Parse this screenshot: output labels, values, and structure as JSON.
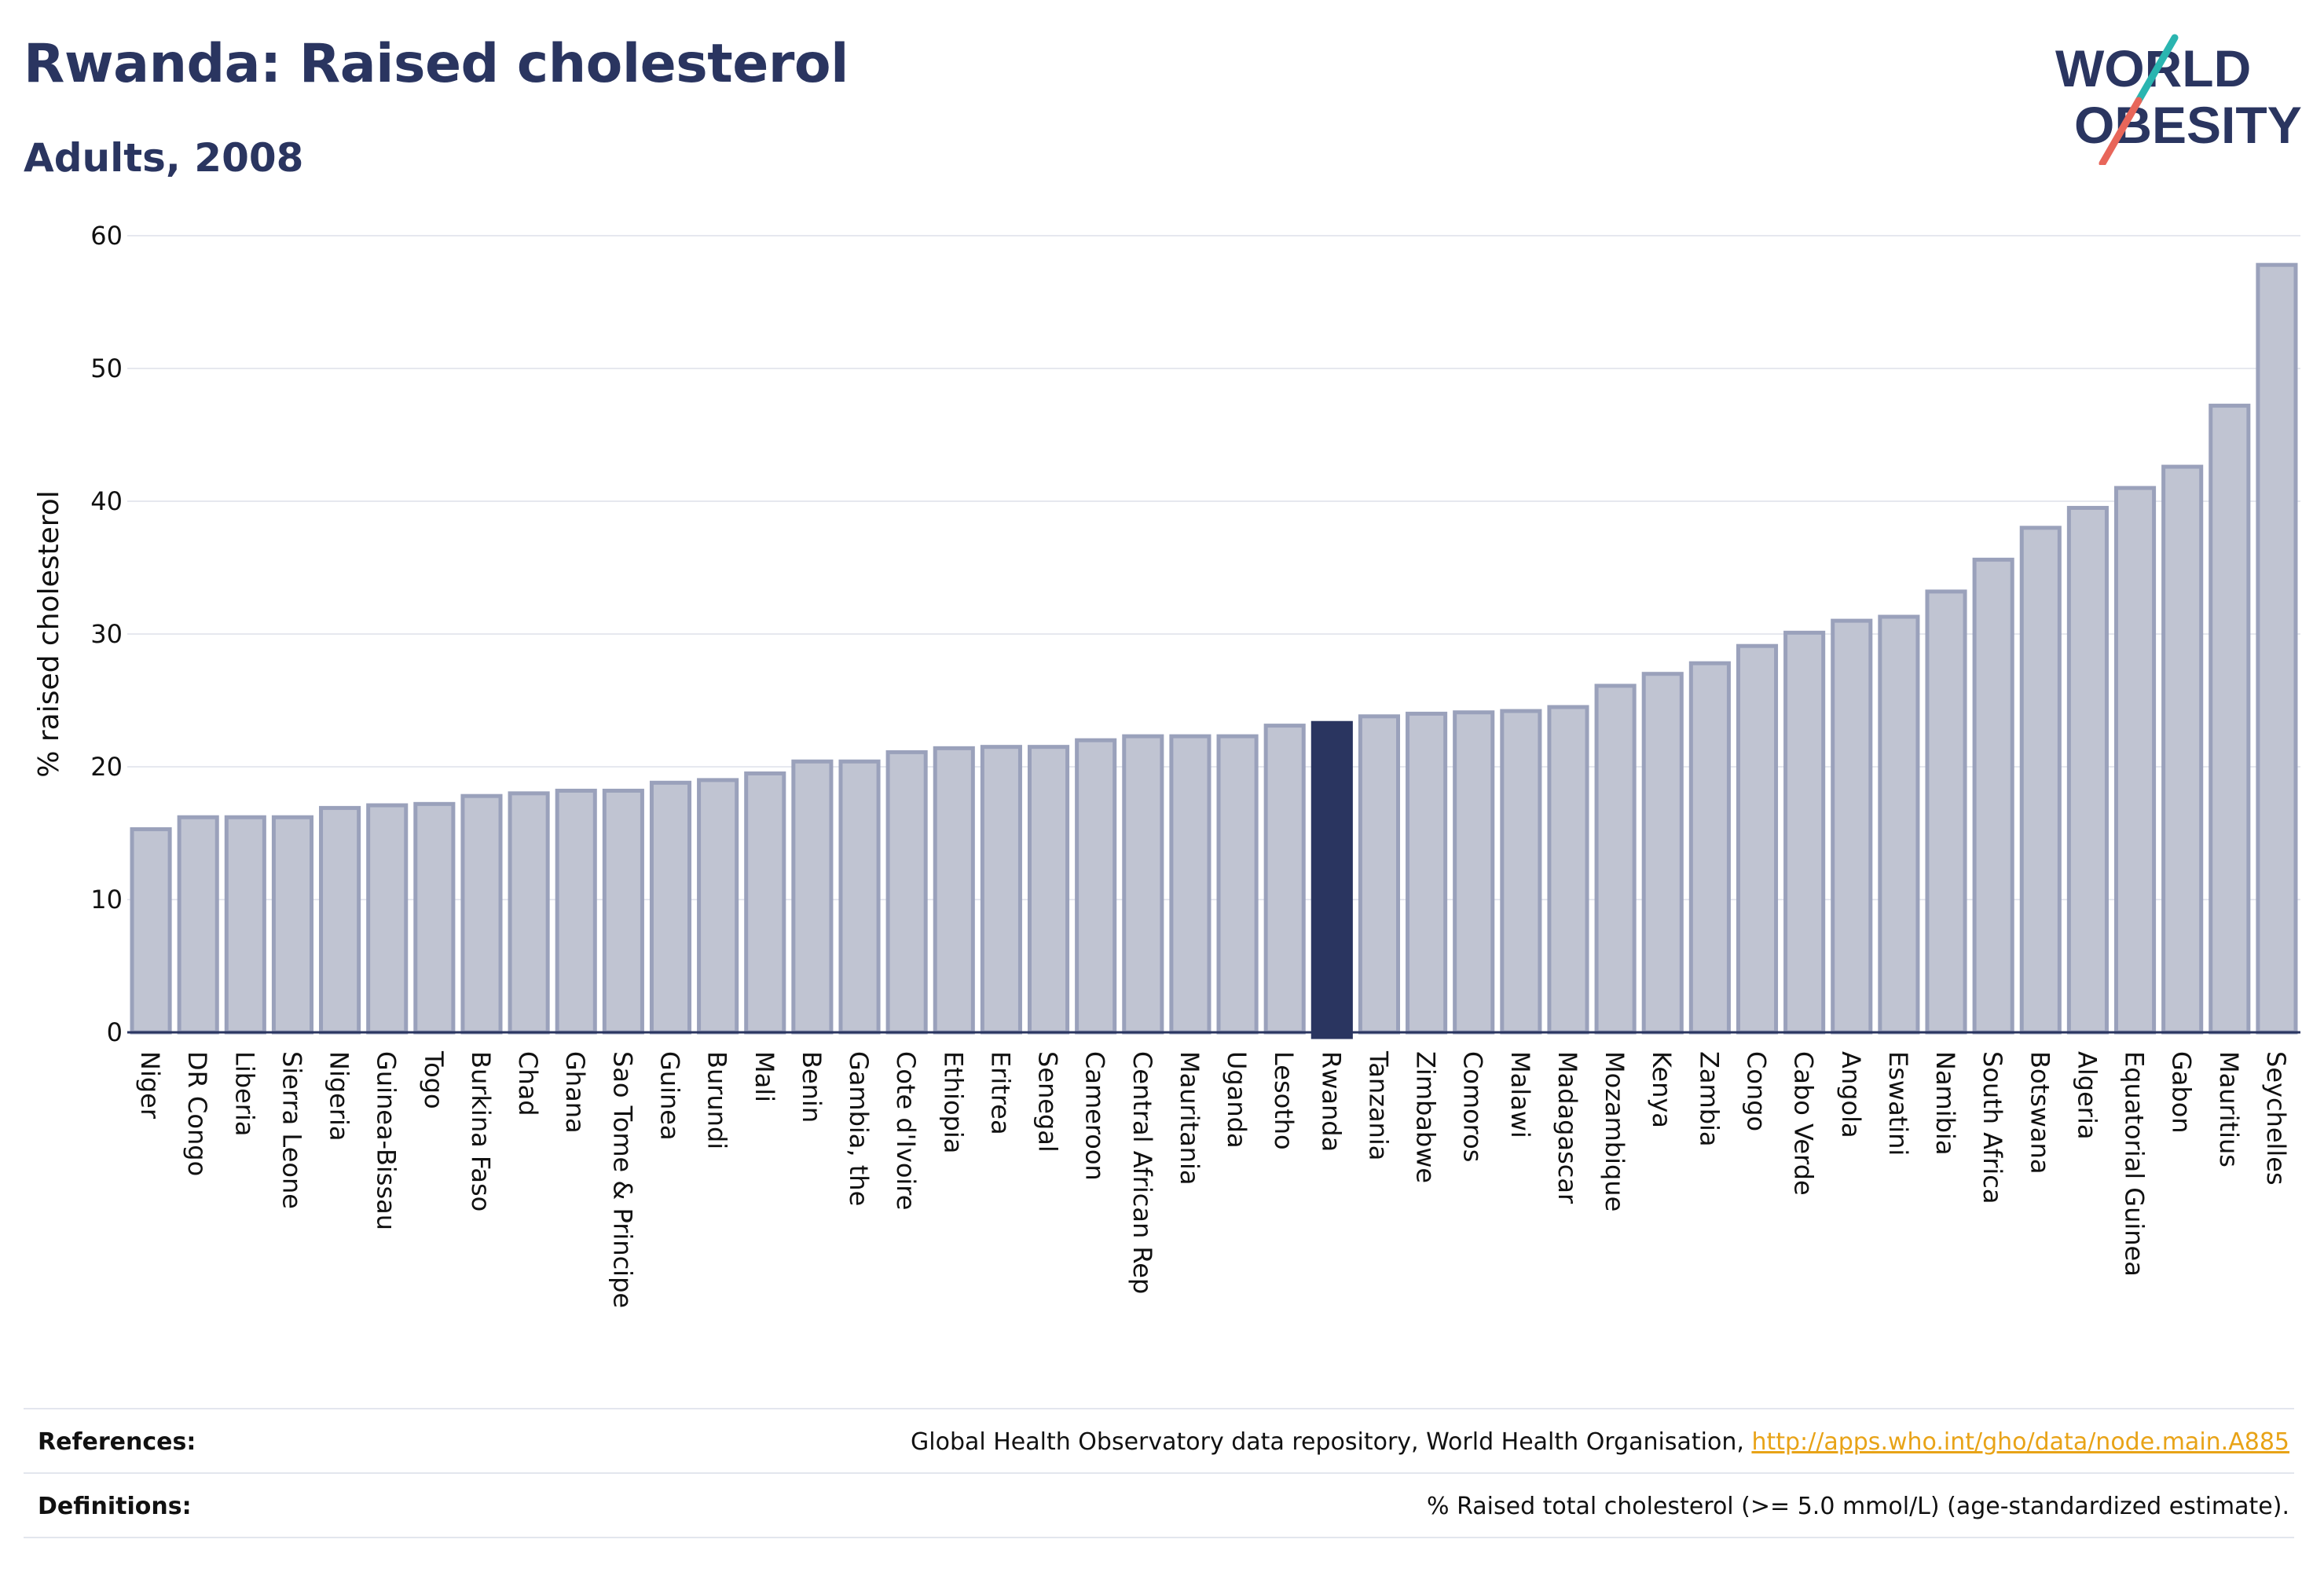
{
  "header": {
    "title": "Rwanda: Raised cholesterol",
    "subtitle": "Adults, 2008"
  },
  "logo": {
    "line1": "WORLD",
    "line2": "OBESITY",
    "colors": {
      "text": "#2a3560",
      "slash_top": "#2ab5b0",
      "slash_bottom": "#e8665a"
    }
  },
  "colors": {
    "bar_fill": "#c0c4d2",
    "bar_stroke": "#9aa1bb",
    "highlight": "#2a3560",
    "grid": "#e6e8ef",
    "axis": "#2a3560"
  },
  "chart_data": {
    "type": "bar",
    "title": "Rwanda: Raised cholesterol",
    "subtitle": "Adults, 2008",
    "xlabel": "",
    "ylabel": "% raised cholesterol",
    "ylim": [
      0,
      60
    ],
    "yticks": [
      0,
      10,
      20,
      30,
      40,
      50,
      60
    ],
    "grid": true,
    "highlight": "Rwanda",
    "categories": [
      "Niger",
      "DR Congo",
      "Liberia",
      "Sierra Leone",
      "Nigeria",
      "Guinea-Bissau",
      "Togo",
      "Burkina Faso",
      "Chad",
      "Ghana",
      "Sao Tome & Principe",
      "Guinea",
      "Burundi",
      "Mali",
      "Benin",
      "Gambia, the",
      "Cote d'Ivoire",
      "Ethiopia",
      "Eritrea",
      "Senegal",
      "Cameroon",
      "Central African Rep",
      "Mauritania",
      "Uganda",
      "Lesotho",
      "Rwanda",
      "Tanzania",
      "Zimbabwe",
      "Comoros",
      "Malawi",
      "Madagascar",
      "Mozambique",
      "Kenya",
      "Zambia",
      "Congo",
      "Cabo Verde",
      "Angola",
      "Eswatini",
      "Namibia",
      "South Africa",
      "Botswana",
      "Algeria",
      "Equatorial Guinea",
      "Gabon",
      "Mauritius",
      "Seychelles"
    ],
    "values": [
      15.3,
      16.2,
      16.2,
      16.2,
      16.9,
      17.1,
      17.2,
      17.8,
      18.0,
      18.2,
      18.2,
      18.8,
      19.0,
      19.5,
      20.4,
      20.4,
      21.1,
      21.4,
      21.5,
      21.5,
      22.0,
      22.3,
      22.3,
      22.3,
      23.1,
      23.3,
      23.8,
      24.0,
      24.1,
      24.2,
      24.5,
      26.1,
      27.0,
      27.8,
      29.1,
      30.1,
      31.0,
      31.3,
      33.2,
      35.6,
      38.0,
      39.5,
      41.0,
      42.6,
      47.2,
      57.8
    ]
  },
  "footer": {
    "references_label": "References:",
    "references_text": "Global Health Observatory data repository, World Health Organisation, ",
    "references_link": "http://apps.who.int/gho/data/node.main.A885",
    "definitions_label": "Definitions:",
    "definitions_text": "% Raised total cholesterol (>= 5.0 mmol/L) (age-standardized estimate)."
  }
}
